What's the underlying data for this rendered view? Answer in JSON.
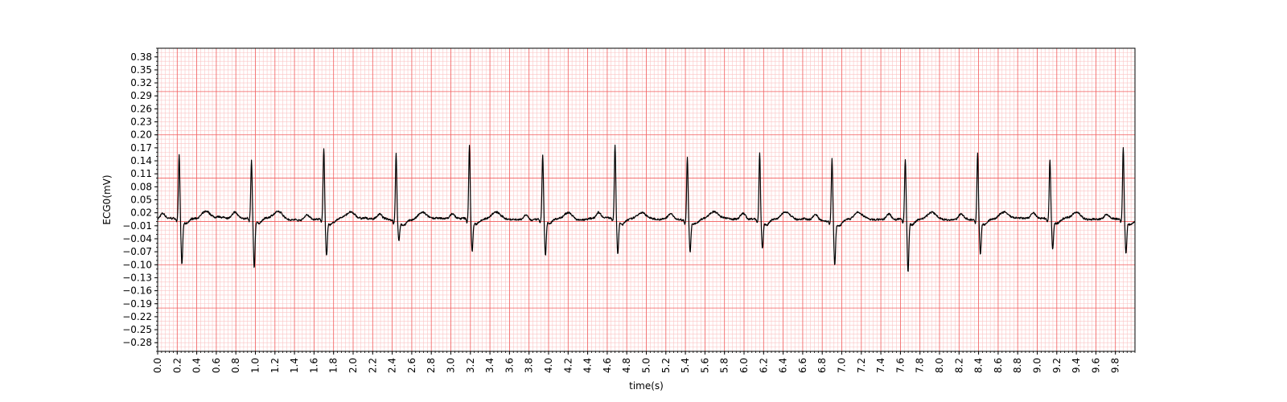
{
  "chart_data": {
    "type": "line",
    "title": "",
    "xlabel": "time(s)",
    "ylabel": "ECG0(mV)",
    "xlim": [
      0.0,
      10.0
    ],
    "ylim": [
      -0.3,
      0.4
    ],
    "x_ticks": [
      0.0,
      0.2,
      0.4,
      0.6,
      0.8,
      1.0,
      1.2,
      1.4,
      1.6,
      1.8,
      2.0,
      2.2,
      2.4,
      2.6,
      2.8,
      3.0,
      3.2,
      3.4,
      3.6,
      3.8,
      4.0,
      4.2,
      4.4,
      4.6,
      4.8,
      5.0,
      5.2,
      5.4,
      5.6,
      5.8,
      6.0,
      6.2,
      6.4,
      6.6,
      6.8,
      7.0,
      7.2,
      7.4,
      7.6,
      7.8,
      8.0,
      8.2,
      8.4,
      8.6,
      8.8,
      9.0,
      9.2,
      9.4,
      9.6,
      9.8
    ],
    "x_tick_labels": [
      "0.0",
      "0.2",
      "0.4",
      "0.6",
      "0.8",
      "1.0",
      "1.2",
      "1.4",
      "1.6",
      "1.8",
      "2.0",
      "2.2",
      "2.4",
      "2.6",
      "2.8",
      "3.0",
      "3.2",
      "3.4",
      "3.6",
      "3.8",
      "4.0",
      "4.2",
      "4.4",
      "4.6",
      "4.8",
      "5.0",
      "5.2",
      "5.4",
      "5.6",
      "5.8",
      "6.0",
      "6.2",
      "6.4",
      "6.6",
      "6.8",
      "7.0",
      "7.2",
      "7.4",
      "7.6",
      "7.8",
      "8.0",
      "8.2",
      "8.4",
      "8.6",
      "8.8",
      "9.0",
      "9.2",
      "9.4",
      "9.6",
      "9.8"
    ],
    "y_ticks": [
      0.38,
      0.35,
      0.32,
      0.29,
      0.26,
      0.23,
      0.2,
      0.17,
      0.14,
      0.11,
      0.08,
      0.05,
      0.02,
      -0.01,
      -0.04,
      -0.07,
      -0.1,
      -0.13,
      -0.16,
      -0.19,
      -0.22,
      -0.25,
      -0.28
    ],
    "y_tick_labels": [
      "0.38",
      "0.35",
      "0.32",
      "0.29",
      "0.26",
      "0.23",
      "0.20",
      "0.17",
      "0.14",
      "0.11",
      "0.08",
      "0.05",
      "0.02",
      "−0.01",
      "−0.04",
      "−0.07",
      "−0.10",
      "−0.13",
      "−0.16",
      "−0.19",
      "−0.22",
      "−0.25",
      "−0.28"
    ],
    "grid": {
      "major": true,
      "minor": true,
      "major_step_s": 0.2,
      "minor_step_s": 0.04,
      "major_step_mV": 0.1,
      "minor_step_mV": 0.01
    },
    "colors": {
      "grid_major": "#f26060",
      "grid_minor": "#fbc4c4",
      "trace": "#000000",
      "axis": "#000000"
    },
    "series": [
      {
        "beats": [
          {
            "t": 0.22,
            "r": 0.155,
            "s": -0.095
          },
          {
            "t": 0.96,
            "r": 0.138,
            "s": -0.108
          },
          {
            "t": 1.7,
            "r": 0.17,
            "s": -0.075
          },
          {
            "t": 2.44,
            "r": 0.16,
            "s": -0.038
          },
          {
            "t": 3.19,
            "r": 0.175,
            "s": -0.065
          },
          {
            "t": 3.94,
            "r": 0.155,
            "s": -0.075
          },
          {
            "t": 4.68,
            "r": 0.175,
            "s": -0.072
          },
          {
            "t": 5.42,
            "r": 0.15,
            "s": -0.065
          },
          {
            "t": 6.16,
            "r": 0.16,
            "s": -0.058
          },
          {
            "t": 6.9,
            "r": 0.15,
            "s": -0.092
          },
          {
            "t": 7.65,
            "r": 0.145,
            "s": -0.112
          },
          {
            "t": 8.39,
            "r": 0.16,
            "s": -0.072
          },
          {
            "t": 9.13,
            "r": 0.142,
            "s": -0.06
          },
          {
            "t": 9.88,
            "r": 0.172,
            "s": -0.072
          }
        ],
        "baseline_mV": 0.005
      }
    ]
  }
}
